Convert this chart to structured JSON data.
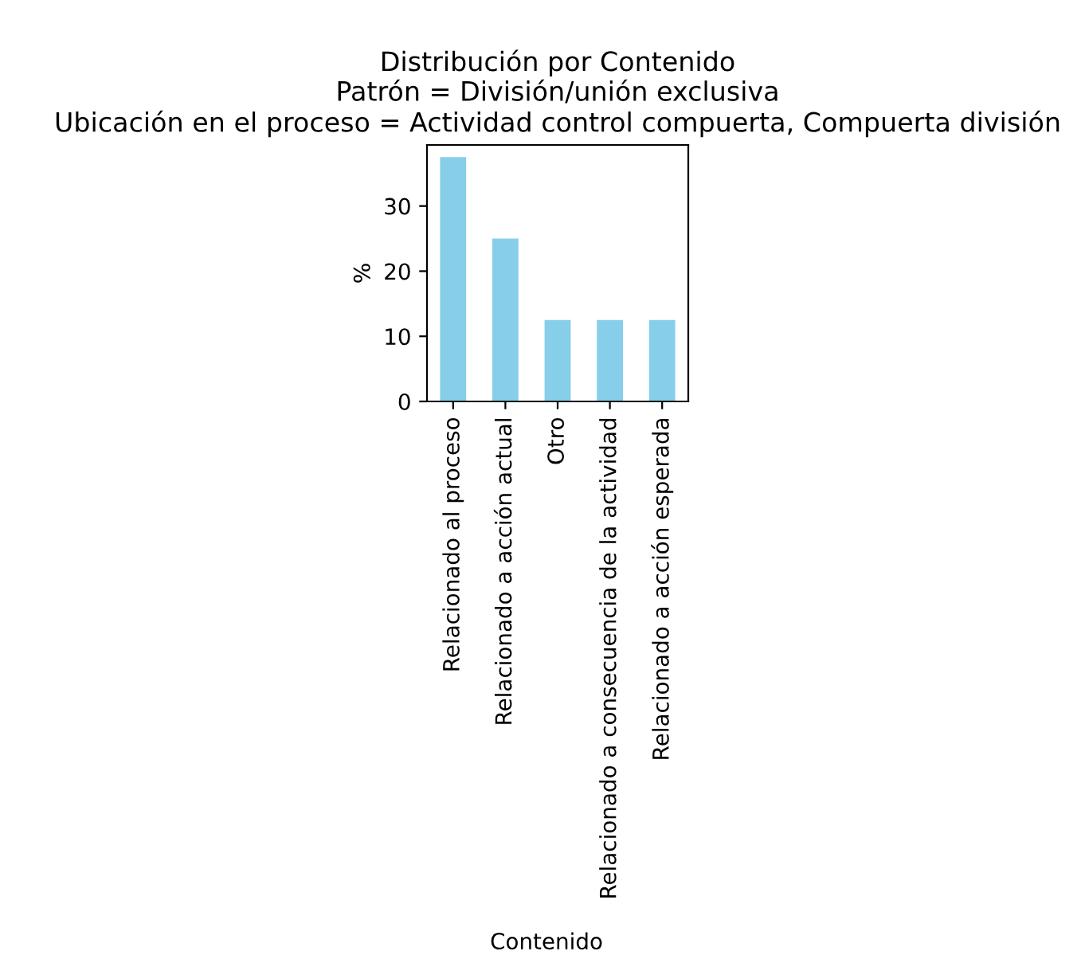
{
  "chart_data": {
    "type": "bar",
    "title": "Distribución por Contenido\nPatrón = División/unión exclusiva\nUbicación en el proceso = Actividad control compuerta, Compuerta división",
    "xlabel": "Contenido",
    "ylabel": "%",
    "categories": [
      "Relacionado al proceso",
      "Relacionado a acción actual",
      "Otro",
      "Relacionado a consecuencia de la actividad",
      "Relacionado a acción esperada"
    ],
    "values": [
      37.5,
      25,
      12.5,
      12.5,
      12.5
    ],
    "color": "#87ceeb",
    "ylim": [
      0,
      39.375
    ],
    "yticks": [
      0,
      10,
      20,
      30
    ],
    "grid": false,
    "legend": false
  }
}
